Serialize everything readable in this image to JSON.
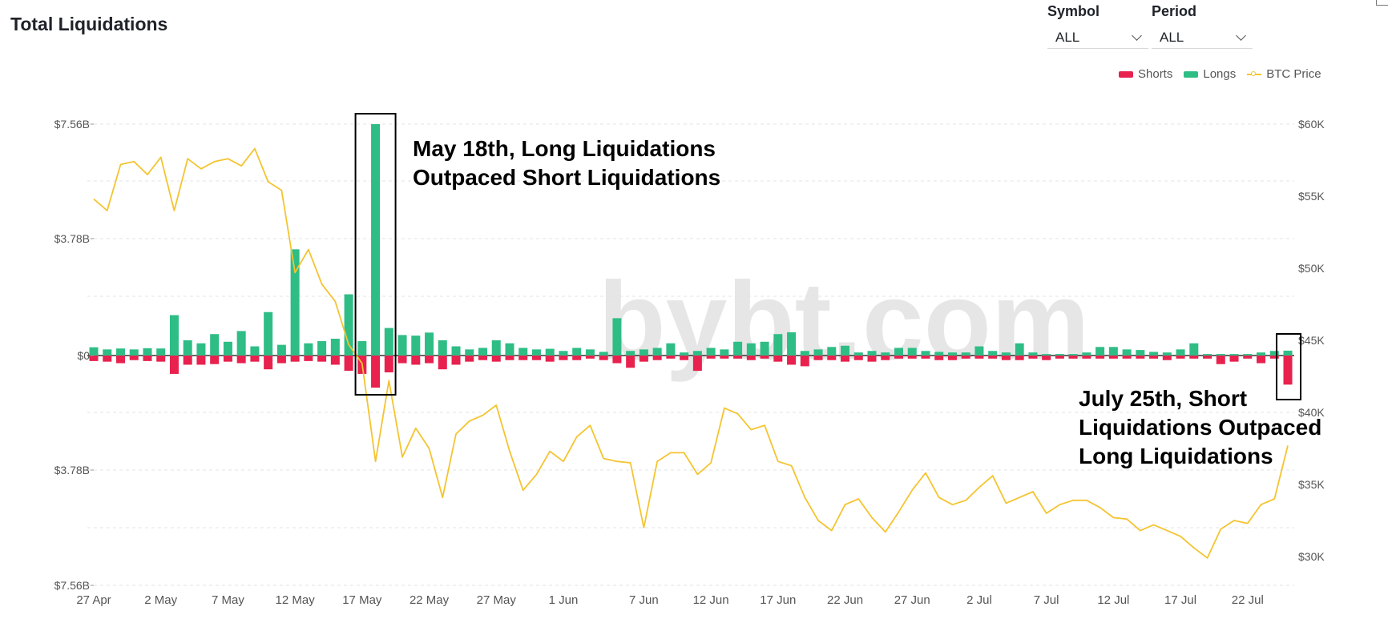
{
  "title": "Total Liquidations",
  "controls": {
    "symbol": {
      "label": "Symbol",
      "value": "ALL"
    },
    "period": {
      "label": "Period",
      "value": "ALL"
    }
  },
  "watermark": "bybt.com",
  "annotations": {
    "may18": [
      "May 18th, Long Liquidations",
      "Outpaced Short Liquidations"
    ],
    "jul25": [
      "July 25th, Short",
      "Liquidations Outpaced",
      "Long Liquidations"
    ]
  },
  "colors": {
    "shorts": "#e8214e",
    "longs": "#2ebd85",
    "btc": "#f4c430"
  },
  "chart_data": {
    "type": "bar",
    "x_tick_labels": [
      "27 Apr",
      "2 May",
      "7 May",
      "12 May",
      "17 May",
      "22 May",
      "27 May",
      "1 Jun",
      "7 Jun",
      "12 Jun",
      "17 Jun",
      "22 Jun",
      "27 Jun",
      "2 Jul",
      "7 Jul",
      "12 Jul",
      "17 Jul",
      "22 Jul"
    ],
    "y_left_ticks": [
      "$7.56B",
      "$3.78B",
      "$0",
      "$3.78B",
      "$7.56B"
    ],
    "y_left_range_billions": [
      -7.56,
      7.56
    ],
    "y_right_ticks": [
      "$60K",
      "$55K",
      "$50K",
      "$45K",
      "$40K",
      "$35K",
      "$30K"
    ],
    "y_right_range": [
      28500,
      60000
    ],
    "x_range": [
      "2021-04-27",
      "2021-07-25"
    ],
    "legend": [
      "Shorts",
      "Longs",
      "BTC Price"
    ],
    "legend_position": "top-right",
    "dates": [
      "2021-04-27",
      "2021-04-28",
      "2021-04-29",
      "2021-04-30",
      "2021-05-01",
      "2021-05-02",
      "2021-05-03",
      "2021-05-04",
      "2021-05-05",
      "2021-05-06",
      "2021-05-07",
      "2021-05-08",
      "2021-05-09",
      "2021-05-10",
      "2021-05-11",
      "2021-05-12",
      "2021-05-13",
      "2021-05-14",
      "2021-05-15",
      "2021-05-16",
      "2021-05-17",
      "2021-05-18",
      "2021-05-19",
      "2021-05-20",
      "2021-05-21",
      "2021-05-22",
      "2021-05-23",
      "2021-05-24",
      "2021-05-25",
      "2021-05-26",
      "2021-05-27",
      "2021-05-28",
      "2021-05-29",
      "2021-05-30",
      "2021-05-31",
      "2021-06-01",
      "2021-06-02",
      "2021-06-03",
      "2021-06-04",
      "2021-06-05",
      "2021-06-06",
      "2021-06-07",
      "2021-06-08",
      "2021-06-09",
      "2021-06-10",
      "2021-06-11",
      "2021-06-12",
      "2021-06-13",
      "2021-06-14",
      "2021-06-15",
      "2021-06-16",
      "2021-06-17",
      "2021-06-18",
      "2021-06-19",
      "2021-06-20",
      "2021-06-21",
      "2021-06-22",
      "2021-06-23",
      "2021-06-24",
      "2021-06-25",
      "2021-06-26",
      "2021-06-27",
      "2021-06-28",
      "2021-06-29",
      "2021-06-30",
      "2021-07-01",
      "2021-07-02",
      "2021-07-03",
      "2021-07-04",
      "2021-07-05",
      "2021-07-06",
      "2021-07-07",
      "2021-07-08",
      "2021-07-09",
      "2021-07-10",
      "2021-07-11",
      "2021-07-12",
      "2021-07-13",
      "2021-07-14",
      "2021-07-15",
      "2021-07-16",
      "2021-07-17",
      "2021-07-18",
      "2021-07-19",
      "2021-07-20",
      "2021-07-21",
      "2021-07-22",
      "2021-07-23",
      "2021-07-24",
      "2021-07-25"
    ],
    "series": [
      {
        "name": "Longs",
        "unit": "USD billions",
        "values": [
          0.27,
          0.2,
          0.23,
          0.2,
          0.24,
          0.23,
          1.32,
          0.5,
          0.4,
          0.7,
          0.45,
          0.8,
          0.3,
          1.42,
          0.35,
          3.47,
          0.4,
          0.47,
          0.55,
          2.0,
          0.47,
          7.56,
          0.9,
          0.67,
          0.65,
          0.75,
          0.5,
          0.3,
          0.2,
          0.25,
          0.5,
          0.4,
          0.25,
          0.2,
          0.22,
          0.15,
          0.25,
          0.2,
          0.12,
          1.22,
          0.15,
          0.2,
          0.25,
          0.4,
          0.1,
          0.15,
          0.25,
          0.2,
          0.45,
          0.4,
          0.45,
          0.7,
          0.76,
          0.15,
          0.2,
          0.28,
          0.32,
          0.1,
          0.15,
          0.1,
          0.25,
          0.25,
          0.15,
          0.12,
          0.1,
          0.1,
          0.3,
          0.15,
          0.1,
          0.4,
          0.1,
          0.05,
          0.05,
          0.05,
          0.1,
          0.28,
          0.28,
          0.2,
          0.18,
          0.12,
          0.1,
          0.2,
          0.4,
          0.05,
          0.05,
          0.05,
          0.05,
          0.1,
          0.15,
          0.16
        ]
      },
      {
        "name": "Shorts",
        "unit": "USD billions",
        "values": [
          0.18,
          0.2,
          0.25,
          0.15,
          0.18,
          0.2,
          0.6,
          0.3,
          0.3,
          0.28,
          0.2,
          0.25,
          0.2,
          0.45,
          0.25,
          0.2,
          0.18,
          0.2,
          0.3,
          0.5,
          0.6,
          1.05,
          0.55,
          0.25,
          0.3,
          0.25,
          0.45,
          0.3,
          0.2,
          0.15,
          0.2,
          0.15,
          0.15,
          0.15,
          0.2,
          0.15,
          0.15,
          0.1,
          0.15,
          0.25,
          0.4,
          0.2,
          0.15,
          0.1,
          0.15,
          0.5,
          0.1,
          0.1,
          0.1,
          0.15,
          0.1,
          0.2,
          0.3,
          0.35,
          0.15,
          0.15,
          0.2,
          0.15,
          0.2,
          0.15,
          0.1,
          0.1,
          0.1,
          0.15,
          0.15,
          0.1,
          0.1,
          0.1,
          0.15,
          0.15,
          0.1,
          0.15,
          0.1,
          0.1,
          0.1,
          0.1,
          0.1,
          0.1,
          0.1,
          0.1,
          0.15,
          0.1,
          0.1,
          0.1,
          0.28,
          0.2,
          0.1,
          0.25,
          0.1,
          0.95
        ]
      },
      {
        "name": "BTC Price",
        "unit": "USD",
        "values": [
          54800,
          54000,
          57200,
          57400,
          56500,
          57700,
          54000,
          57600,
          56900,
          57400,
          57600,
          57100,
          58300,
          56000,
          55400,
          49700,
          51300,
          48900,
          47700,
          44700,
          43400,
          36600,
          42200,
          36900,
          38900,
          37500,
          34100,
          38500,
          39400,
          39800,
          40500,
          37300,
          34600,
          35700,
          37300,
          36600,
          38300,
          39100,
          36800,
          36600,
          36500,
          32000,
          36600,
          37200,
          37200,
          35700,
          36500,
          40300,
          39900,
          38800,
          39100,
          36600,
          36300,
          34100,
          32500,
          31800,
          33600,
          34000,
          32700,
          31700,
          33100,
          34600,
          35800,
          34100,
          33600,
          33900,
          34800,
          35600,
          33700,
          34100,
          34500,
          33000,
          33600,
          33900,
          33900,
          33400,
          32700,
          32600,
          31800,
          32200,
          31800,
          31400,
          30600,
          29900,
          31900,
          32500,
          32300,
          33600,
          34000,
          37700
        ]
      }
    ]
  }
}
